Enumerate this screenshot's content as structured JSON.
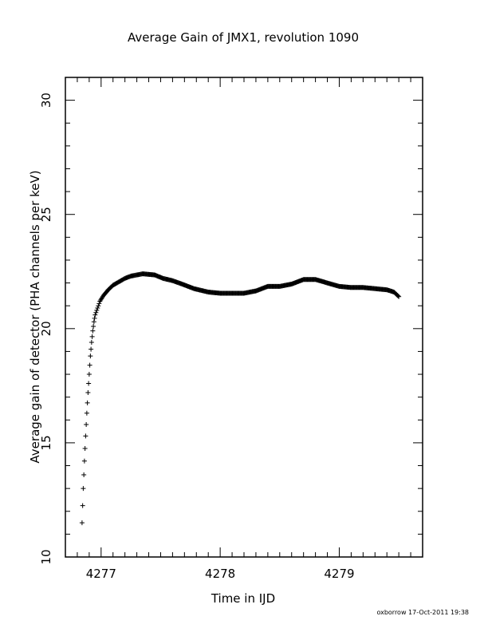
{
  "chart_data": {
    "type": "scatter",
    "title": "Average Gain of JMX1, revolution 1090",
    "xlabel": "Time in IJD",
    "ylabel": "Average gain of detector (PHA channels per keV)",
    "xlim": [
      4276.7,
      4279.7
    ],
    "ylim": [
      10,
      31
    ],
    "x_major_ticks": [
      4277,
      4278,
      4279
    ],
    "x_tick_labels": [
      "4277",
      "4278",
      "4279"
    ],
    "x_minor_step": 0.1,
    "y_major_ticks": [
      10,
      15,
      20,
      25,
      30
    ],
    "y_tick_labels": [
      "10",
      "15",
      "20",
      "25",
      "30"
    ],
    "y_minor_step": 1,
    "grid": false,
    "marker": "+",
    "series": [
      {
        "x": [
          4276.84,
          4276.85,
          4276.86,
          4276.87,
          4276.88,
          4276.89,
          4276.9,
          4276.91,
          4276.92,
          4276.93,
          4276.94,
          4276.95,
          4276.97,
          4276.99,
          4277.02,
          4277.06,
          4277.1,
          4277.15,
          4277.2,
          4277.25,
          4277.3,
          4277.35,
          4277.45,
          4277.52,
          4277.6,
          4277.68,
          4277.78,
          4277.9,
          4278.0,
          4278.1,
          4278.2,
          4278.3,
          4278.4,
          4278.5,
          4278.6,
          4278.7,
          4278.8,
          4278.9,
          4279.0,
          4279.1,
          4279.2,
          4279.3,
          4279.4,
          4279.46,
          4279.5
        ],
        "y": [
          11.5,
          13.0,
          14.2,
          15.3,
          16.3,
          17.2,
          18.0,
          18.8,
          19.4,
          19.9,
          20.3,
          20.6,
          20.9,
          21.2,
          21.45,
          21.7,
          21.9,
          22.05,
          22.2,
          22.3,
          22.35,
          22.4,
          22.35,
          22.2,
          22.1,
          21.95,
          21.75,
          21.6,
          21.55,
          21.55,
          21.55,
          21.65,
          21.85,
          21.85,
          21.95,
          22.15,
          22.15,
          22.0,
          21.85,
          21.8,
          21.8,
          21.75,
          21.7,
          21.6,
          21.4
        ]
      }
    ]
  },
  "footer_stamp": "oxborrow 17-Oct-2011 19:38"
}
